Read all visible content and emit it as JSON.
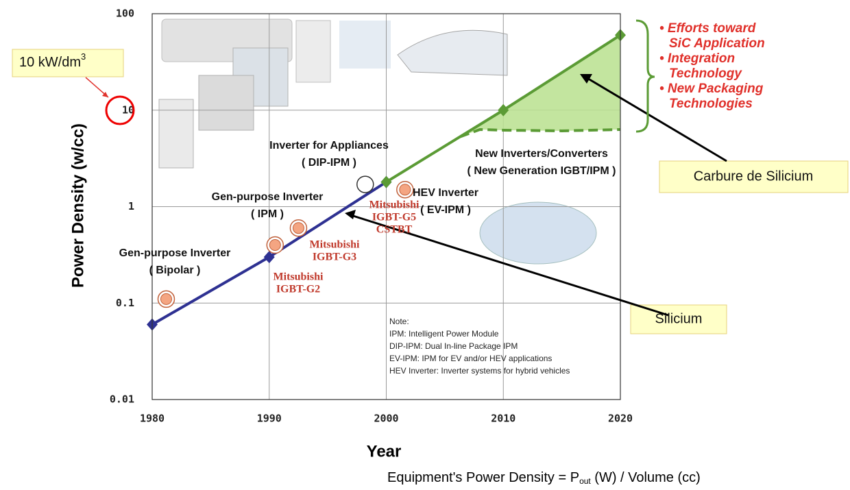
{
  "chart_data": {
    "type": "line",
    "x_label": "Year",
    "y_label": "Power Density  (w/cc)",
    "xlim": [
      1980,
      2020
    ],
    "ylim": [
      0.01,
      100
    ],
    "log_y": true,
    "grid": true,
    "xticks": [
      1980,
      1990,
      2000,
      2010,
      2020
    ],
    "yticks": [
      0.01,
      0.1,
      1,
      10,
      100
    ],
    "series": [
      {
        "color": "#2e3192",
        "x": [
          1980,
          1990,
          2000
        ],
        "values": [
          0.06,
          0.3,
          1.8
        ]
      },
      {
        "color": "#5b9b35",
        "x": [
          2000,
          2010,
          2020
        ],
        "values": [
          1.8,
          10,
          60
        ],
        "fill": "#b8e08e"
      },
      {
        "color": "#5b9b35",
        "x": [
          2006.3,
          2008,
          2010,
          2015,
          2020
        ],
        "values": [
          5.3,
          6.3,
          6.2,
          6.1,
          6.3
        ],
        "dashed": true
      }
    ],
    "points": {
      "x": [
        1981.2,
        1990.5,
        1992.5,
        1998.2,
        2001.6
      ],
      "values": [
        0.11,
        0.4,
        0.6,
        1.7,
        1.5
      ],
      "colors": [
        "#f4a582",
        "#f4a582",
        "#f4a582",
        "#ffffff",
        "#f4a582"
      ]
    }
  },
  "annotations": [
    [
      "Inverter for Appliances",
      "( DIP-IPM )"
    ],
    [
      "Gen-purpose Inverter",
      "( IPM )"
    ],
    [
      "Gen-purpose Inverter",
      "( Bipolar )"
    ],
    [
      "HEV Inverter",
      "( EV-IPM )"
    ],
    [
      "New Inverters/Converters",
      "( New Generation IGBT/IPM )"
    ]
  ],
  "makers": [
    [
      "Mitsubishi",
      "IGBT-G2"
    ],
    [
      "Mitsubishi",
      "IGBT-G3"
    ],
    [
      "Mitsubishi",
      "IGBT-G5",
      "CSTBT"
    ]
  ],
  "note": [
    "Note:",
    "IPM: Intelligent Power Module",
    "DIP-IPM: Dual In-line Package IPM",
    "EV-IPM: IPM for EV and/or HEV applications",
    "HEV Inverter: Inverter systems for hybrid vehicles"
  ],
  "efforts": [
    "• Efforts toward",
    "SiC Application",
    "• Integration",
    "Technology",
    "• New Packaging",
    "Technologies"
  ],
  "callouts": {
    "density": [
      "10 kW/dm",
      "3"
    ],
    "sic": "Carbure de Silicium",
    "si": "Silicium"
  },
  "formula": [
    "Equipment's Power Density = P",
    "out",
    " (W) / Volume (cc)"
  ]
}
